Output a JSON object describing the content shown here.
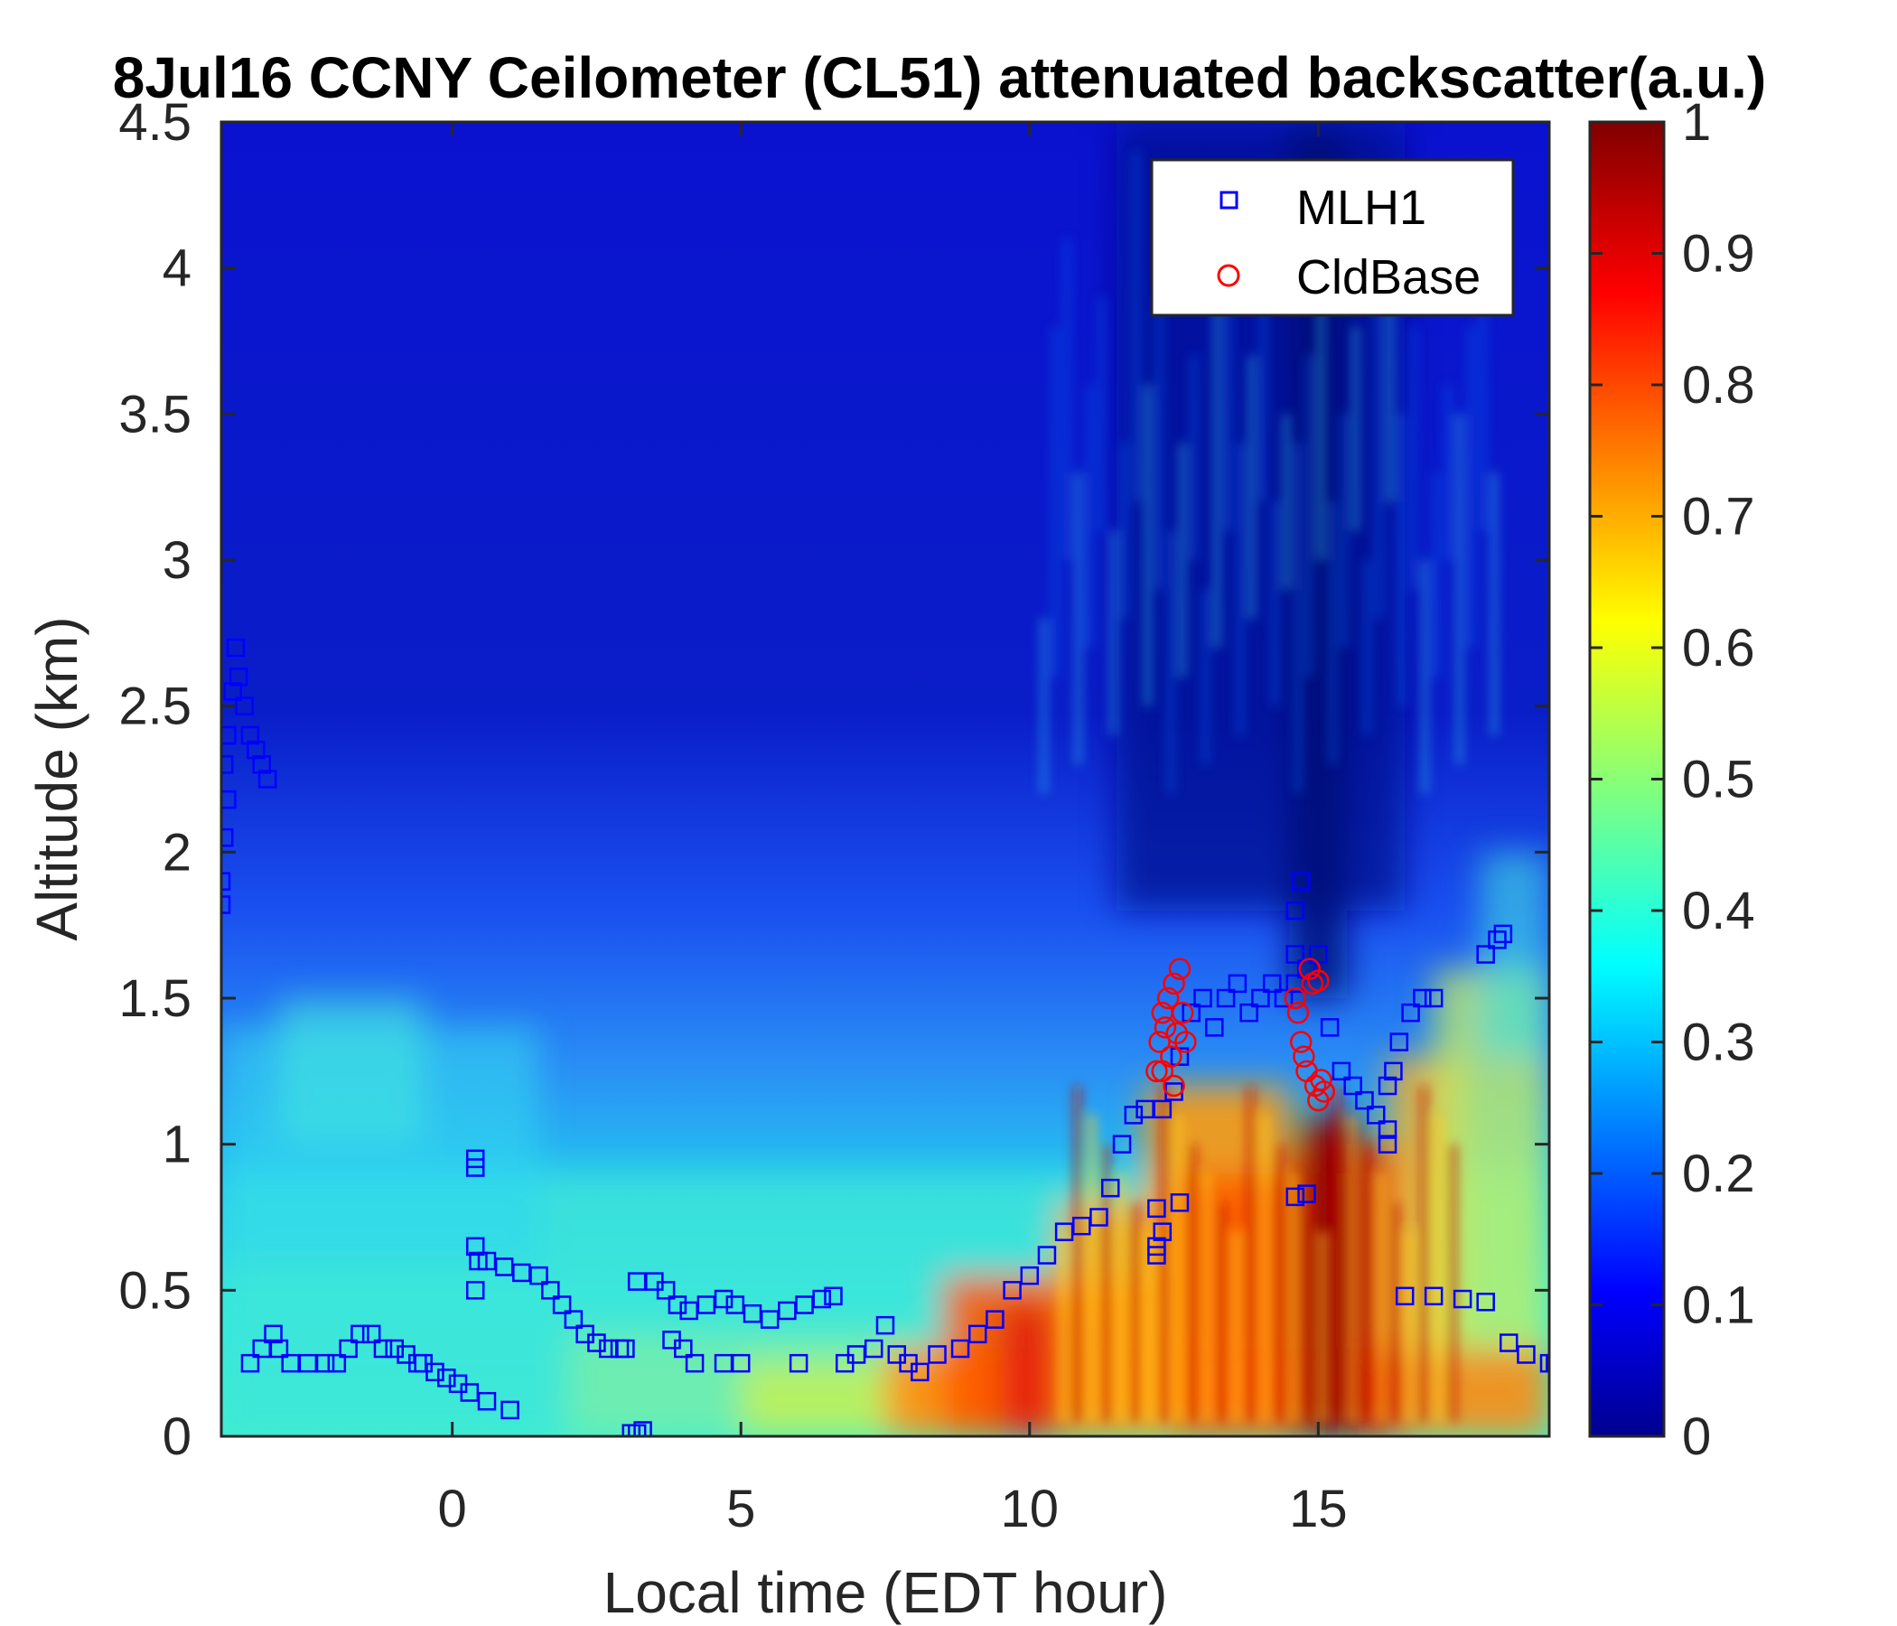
{
  "chart_data": {
    "type": "heatmap",
    "title": "8Jul16 CCNY Ceilometer (CL51) attenuated backscatter(a.u.)",
    "xlabel": "Local time (EDT hour)",
    "ylabel": "Altitude (km)",
    "xlim": [
      -4,
      19
    ],
    "ylim": [
      0,
      4.5
    ],
    "x_ticks": [
      0,
      5,
      10,
      15
    ],
    "x_tick_labels": [
      "0",
      "5",
      "10",
      "15"
    ],
    "y_ticks": [
      0,
      0.5,
      1,
      1.5,
      2,
      2.5,
      3,
      3.5,
      4,
      4.5
    ],
    "y_tick_labels": [
      "0",
      "0.5",
      "1",
      "1.5",
      "2",
      "2.5",
      "3",
      "3.5",
      "4",
      "4.5"
    ],
    "colorbar": {
      "range": [
        0,
        1
      ],
      "ticks": [
        0,
        0.1,
        0.2,
        0.3,
        0.4,
        0.5,
        0.6,
        0.7,
        0.8,
        0.9,
        1
      ],
      "tick_labels": [
        "0",
        "0.1",
        "0.2",
        "0.3",
        "0.4",
        "0.5",
        "0.6",
        "0.7",
        "0.8",
        "0.9",
        "1"
      ],
      "colormap": "jet"
    },
    "legend": {
      "placement": "top-right",
      "entries": [
        {
          "label": "MLH1",
          "marker": "square",
          "color": "#0000ff"
        },
        {
          "label": "CldBase",
          "marker": "circle",
          "color": "#ff0000"
        }
      ]
    },
    "series": [
      {
        "name": "MLH1",
        "marker": "square",
        "color": "#0000ff",
        "points": [
          [
            -4,
            1.82
          ],
          [
            -4,
            1.9
          ],
          [
            -3.95,
            2.05
          ],
          [
            -3.9,
            2.18
          ],
          [
            -3.95,
            2.3
          ],
          [
            -3.9,
            2.4
          ],
          [
            -3.8,
            2.55
          ],
          [
            -3.75,
            2.7
          ],
          [
            -3.7,
            2.6
          ],
          [
            -3.6,
            2.5
          ],
          [
            -3.5,
            2.4
          ],
          [
            -3.4,
            2.35
          ],
          [
            -3.3,
            2.3
          ],
          [
            -3.2,
            2.25
          ],
          [
            -3.5,
            0.25
          ],
          [
            -3.3,
            0.3
          ],
          [
            -3.1,
            0.35
          ],
          [
            -3.0,
            0.3
          ],
          [
            -2.8,
            0.25
          ],
          [
            -2.5,
            0.25
          ],
          [
            -2.2,
            0.25
          ],
          [
            -2.0,
            0.25
          ],
          [
            -1.8,
            0.3
          ],
          [
            -1.6,
            0.35
          ],
          [
            -1.4,
            0.35
          ],
          [
            -1.2,
            0.3
          ],
          [
            -1.0,
            0.3
          ],
          [
            -0.8,
            0.28
          ],
          [
            -0.6,
            0.25
          ],
          [
            -0.5,
            0.25
          ],
          [
            -0.3,
            0.22
          ],
          [
            -0.1,
            0.2
          ],
          [
            0.1,
            0.18
          ],
          [
            0.3,
            0.15
          ],
          [
            0.6,
            0.12
          ],
          [
            1.0,
            0.09
          ],
          [
            0.4,
            0.92
          ],
          [
            0.4,
            0.95
          ],
          [
            0.4,
            0.65
          ],
          [
            0.45,
            0.6
          ],
          [
            0.4,
            0.5
          ],
          [
            0.6,
            0.6
          ],
          [
            0.9,
            0.58
          ],
          [
            1.2,
            0.56
          ],
          [
            1.5,
            0.55
          ],
          [
            1.7,
            0.5
          ],
          [
            1.9,
            0.45
          ],
          [
            2.1,
            0.4
          ],
          [
            2.3,
            0.35
          ],
          [
            2.5,
            0.32
          ],
          [
            2.7,
            0.3
          ],
          [
            2.9,
            0.3
          ],
          [
            3.0,
            0.3
          ],
          [
            3.1,
            0.01
          ],
          [
            3.2,
            0.01
          ],
          [
            3.3,
            0.02
          ],
          [
            3.2,
            0.53
          ],
          [
            3.5,
            0.53
          ],
          [
            3.7,
            0.5
          ],
          [
            3.9,
            0.45
          ],
          [
            4.1,
            0.43
          ],
          [
            4.4,
            0.45
          ],
          [
            4.7,
            0.47
          ],
          [
            4.9,
            0.45
          ],
          [
            5.2,
            0.42
          ],
          [
            5.5,
            0.4
          ],
          [
            5.8,
            0.43
          ],
          [
            6.1,
            0.45
          ],
          [
            6.4,
            0.47
          ],
          [
            6.6,
            0.48
          ],
          [
            3.8,
            0.33
          ],
          [
            4.0,
            0.3
          ],
          [
            4.2,
            0.25
          ],
          [
            4.7,
            0.25
          ],
          [
            5.0,
            0.25
          ],
          [
            6.0,
            0.25
          ],
          [
            6.8,
            0.25
          ],
          [
            7.0,
            0.28
          ],
          [
            7.3,
            0.3
          ],
          [
            7.5,
            0.38
          ],
          [
            7.7,
            0.28
          ],
          [
            7.9,
            0.25
          ],
          [
            8.1,
            0.22
          ],
          [
            8.4,
            0.28
          ],
          [
            8.8,
            0.3
          ],
          [
            9.1,
            0.35
          ],
          [
            9.4,
            0.4
          ],
          [
            9.7,
            0.5
          ],
          [
            10.0,
            0.55
          ],
          [
            10.3,
            0.62
          ],
          [
            10.6,
            0.7
          ],
          [
            10.9,
            0.72
          ],
          [
            11.2,
            0.75
          ],
          [
            11.4,
            0.85
          ],
          [
            11.6,
            1.0
          ],
          [
            11.8,
            1.1
          ],
          [
            12.0,
            1.12
          ],
          [
            12.3,
            1.12
          ],
          [
            12.5,
            1.18
          ],
          [
            12.2,
            0.62
          ],
          [
            12.2,
            0.65
          ],
          [
            12.3,
            0.7
          ],
          [
            12.2,
            0.78
          ],
          [
            12.6,
            0.8
          ],
          [
            12.6,
            1.3
          ],
          [
            12.8,
            1.45
          ],
          [
            13.0,
            1.5
          ],
          [
            13.2,
            1.4
          ],
          [
            13.4,
            1.5
          ],
          [
            13.6,
            1.55
          ],
          [
            13.8,
            1.45
          ],
          [
            14.0,
            1.5
          ],
          [
            14.2,
            1.55
          ],
          [
            14.4,
            1.5
          ],
          [
            14.6,
            1.55
          ],
          [
            14.8,
            1.6
          ],
          [
            14.6,
            1.65
          ],
          [
            14.6,
            1.8
          ],
          [
            14.7,
            1.9
          ],
          [
            15.0,
            1.65
          ],
          [
            15.2,
            1.4
          ],
          [
            15.4,
            1.25
          ],
          [
            15.6,
            1.2
          ],
          [
            15.8,
            1.15
          ],
          [
            16.0,
            1.1
          ],
          [
            16.2,
            1.2
          ],
          [
            16.4,
            1.35
          ],
          [
            16.6,
            1.45
          ],
          [
            16.8,
            1.5
          ],
          [
            17.0,
            1.5
          ],
          [
            14.6,
            0.82
          ],
          [
            14.8,
            0.83
          ],
          [
            16.2,
            1.0
          ],
          [
            16.2,
            1.05
          ],
          [
            16.3,
            1.25
          ],
          [
            16.5,
            0.48
          ],
          [
            17.0,
            0.48
          ],
          [
            17.5,
            0.47
          ],
          [
            17.9,
            0.46
          ],
          [
            17.9,
            1.65
          ],
          [
            18.1,
            1.7
          ],
          [
            18.2,
            1.72
          ],
          [
            18.3,
            0.32
          ],
          [
            18.6,
            0.28
          ],
          [
            19.0,
            0.25
          ],
          [
            19.1,
            0.25
          ]
        ]
      },
      {
        "name": "CldBase",
        "marker": "circle",
        "color": "#ff0000",
        "points": [
          [
            12.2,
            1.25
          ],
          [
            12.25,
            1.35
          ],
          [
            12.3,
            1.45
          ],
          [
            12.35,
            1.4
          ],
          [
            12.4,
            1.5
          ],
          [
            12.45,
            1.3
          ],
          [
            12.5,
            1.2
          ],
          [
            12.5,
            1.55
          ],
          [
            12.55,
            1.38
          ],
          [
            12.6,
            1.6
          ],
          [
            12.65,
            1.45
          ],
          [
            12.7,
            1.35
          ],
          [
            12.3,
            1.25
          ],
          [
            14.6,
            1.5
          ],
          [
            14.65,
            1.45
          ],
          [
            14.7,
            1.35
          ],
          [
            14.75,
            1.3
          ],
          [
            14.8,
            1.25
          ],
          [
            14.85,
            1.6
          ],
          [
            14.9,
            1.55
          ],
          [
            14.95,
            1.2
          ],
          [
            15.0,
            1.15
          ],
          [
            15.05,
            1.22
          ],
          [
            15.1,
            1.18
          ],
          [
            15.0,
            1.56
          ]
        ]
      }
    ],
    "grid": false
  }
}
